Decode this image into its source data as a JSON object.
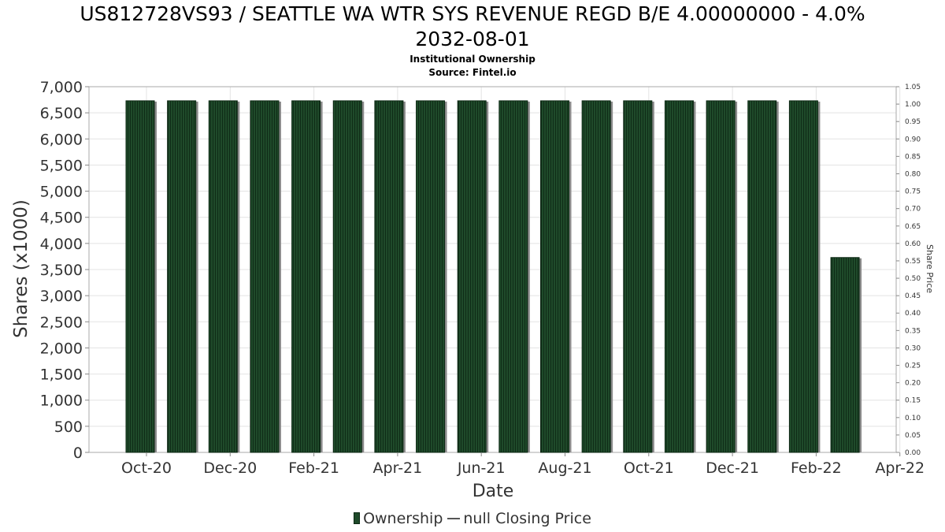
{
  "header": {
    "title_line1": "US812728VS93 / SEATTLE WA WTR SYS REVENUE REGD B/E 4.00000000 - 4.0%",
    "title_line2": "2032-08-01",
    "subtitle": "Institutional Ownership",
    "source": "Source: Fintel.io"
  },
  "legend": {
    "ownership": "Ownership",
    "price": "null Closing Price"
  },
  "colors": {
    "bar_fill": "#1f4a2a",
    "bar_stripe": "#0f2c17",
    "bar_shadow": "#8a8a8a",
    "grid": "#e3e3e3",
    "axis_text": "#333333"
  },
  "chart_data": {
    "type": "bar",
    "xlabel": "Date",
    "ylabel": "Shares (x1000)",
    "y2label": "Share Price",
    "ylim": [
      0,
      7000
    ],
    "y2lim": [
      0,
      1.05
    ],
    "yticks": [
      "0",
      "500",
      "1,000",
      "1,500",
      "2,000",
      "2,500",
      "3,000",
      "3,500",
      "4,000",
      "4,500",
      "5,000",
      "5,500",
      "6,000",
      "6,500",
      "7,000"
    ],
    "y2ticks": [
      "0.00",
      "0.05",
      "0.10",
      "0.15",
      "0.20",
      "0.25",
      "0.30",
      "0.35",
      "0.40",
      "0.45",
      "0.50",
      "0.55",
      "0.60",
      "0.65",
      "0.70",
      "0.75",
      "0.80",
      "0.85",
      "0.90",
      "0.95",
      "1.00",
      "1.05"
    ],
    "xticks": [
      "Oct-20",
      "Dec-20",
      "Feb-21",
      "Apr-21",
      "Jun-21",
      "Aug-21",
      "Oct-21",
      "Dec-21",
      "Feb-22",
      "Apr-22"
    ],
    "grid": true,
    "legend_position": "bottom",
    "series": [
      {
        "name": "Ownership",
        "values": [
          6730,
          6730,
          6730,
          6730,
          6730,
          6730,
          6730,
          6730,
          6730,
          6730,
          6730,
          6730,
          6730,
          6730,
          6730,
          6730,
          6730,
          3730
        ]
      }
    ]
  }
}
